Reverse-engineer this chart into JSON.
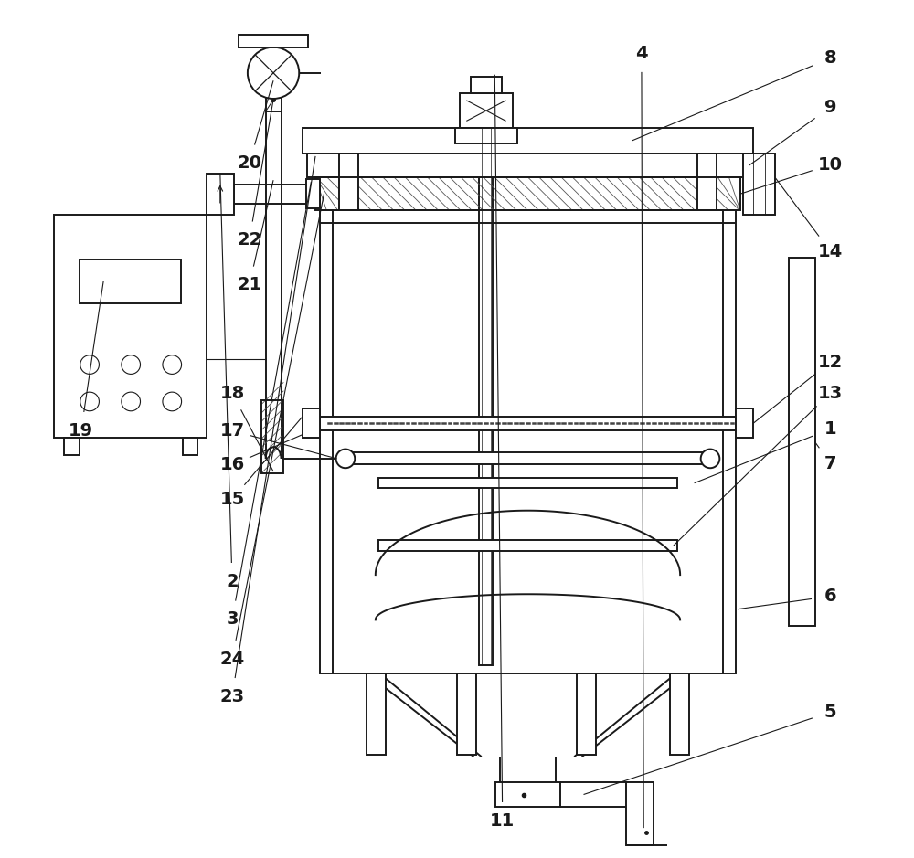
{
  "bg_color": "#ffffff",
  "line_color": "#1a1a1a",
  "fig_w": 10.0,
  "fig_h": 9.39,
  "lw_main": 1.4,
  "lw_thin": 0.8,
  "label_fs": 14
}
